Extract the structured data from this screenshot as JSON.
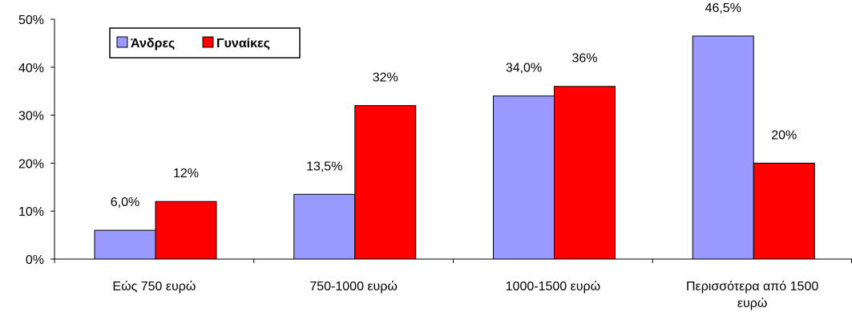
{
  "chart_data": {
    "type": "bar",
    "categories": [
      [
        "Εώς 750 ευρώ"
      ],
      [
        "750-1000 ευρώ"
      ],
      [
        "1000-1500 ευρώ"
      ],
      [
        "Περισσότερα από 1500",
        "ευρώ"
      ]
    ],
    "series": [
      {
        "name": "Άνδρες",
        "color": "#9999ff",
        "values": [
          6.0,
          13.5,
          34.0,
          46.5
        ],
        "labels": [
          "6,0%",
          "13,5%",
          "34,0%",
          "46,5%"
        ]
      },
      {
        "name": "Γυναίκες",
        "color": "#ff0000",
        "values": [
          12,
          32,
          36,
          20
        ],
        "labels": [
          "12%",
          "32%",
          "36%",
          "20%"
        ]
      }
    ],
    "y_ticks": [
      {
        "value": 0,
        "label": "0%"
      },
      {
        "value": 10,
        "label": "10%"
      },
      {
        "value": 20,
        "label": "20%"
      },
      {
        "value": 30,
        "label": "30%"
      },
      {
        "value": 40,
        "label": "40%"
      },
      {
        "value": 50,
        "label": "50%"
      }
    ],
    "ylim": [
      0,
      50
    ],
    "grid": false,
    "legend_position": "top-left"
  }
}
